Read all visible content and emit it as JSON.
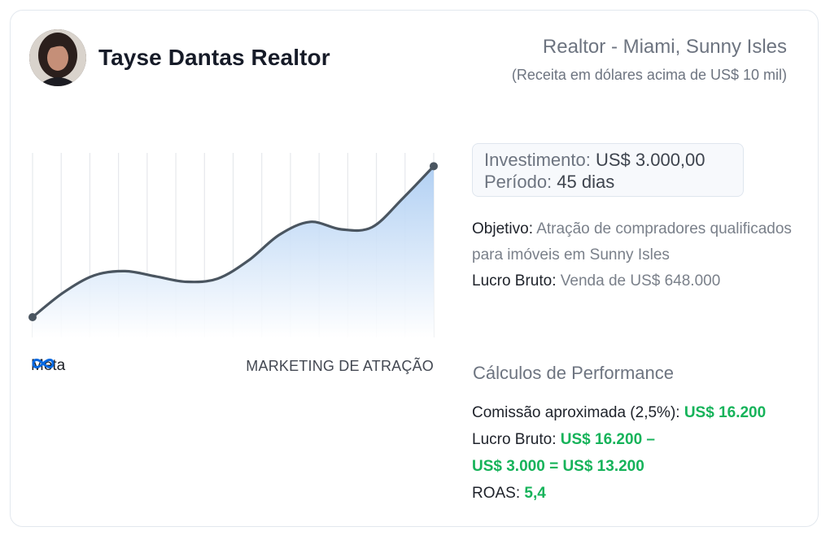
{
  "header": {
    "name": "Tayse Dantas Realtor",
    "title": "Realtor - Miami, Sunny Isles",
    "subtitle": "(Receita em dólares acima de US$ 10 mil)"
  },
  "chart": {
    "logo_text": "Meta",
    "caption": "MARKETING DE ATRAÇÃO"
  },
  "chart_data": {
    "type": "area",
    "x": [
      0,
      1,
      2,
      3,
      4,
      5,
      6,
      7,
      8,
      9,
      10,
      11,
      12,
      13
    ],
    "values": [
      19,
      42,
      58,
      62,
      57,
      52,
      55,
      72,
      96,
      108,
      101,
      103,
      130,
      160
    ],
    "ylim": [
      0,
      180
    ],
    "grid": "vertical",
    "colors": {
      "line": "#4a5560",
      "fill": "#b9d5f4"
    }
  },
  "investment": {
    "label1": "Investimento:",
    "value1": "US$ 3.000,00",
    "label2": "Período:",
    "value2": "45 dias"
  },
  "info": {
    "objective_label": "Objetivo:",
    "objective_text": "Atração de compradores qualificados para imóveis em Sunny Isles",
    "profit_label": "Lucro Bruto:",
    "profit_text": "Venda de US$ 648.000"
  },
  "performance": {
    "title": "Cálculos de Performance",
    "commission_label": "Comissão aproximada (2,5%):",
    "commission_value": "US$ 16.200",
    "gross_label": "Lucro Bruto:",
    "gross_value_1": "US$ 16.200 –",
    "gross_value_2": "US$ 3.000 = US$ 13.200",
    "roas_label": "ROAS:",
    "roas_value": "5,4"
  }
}
